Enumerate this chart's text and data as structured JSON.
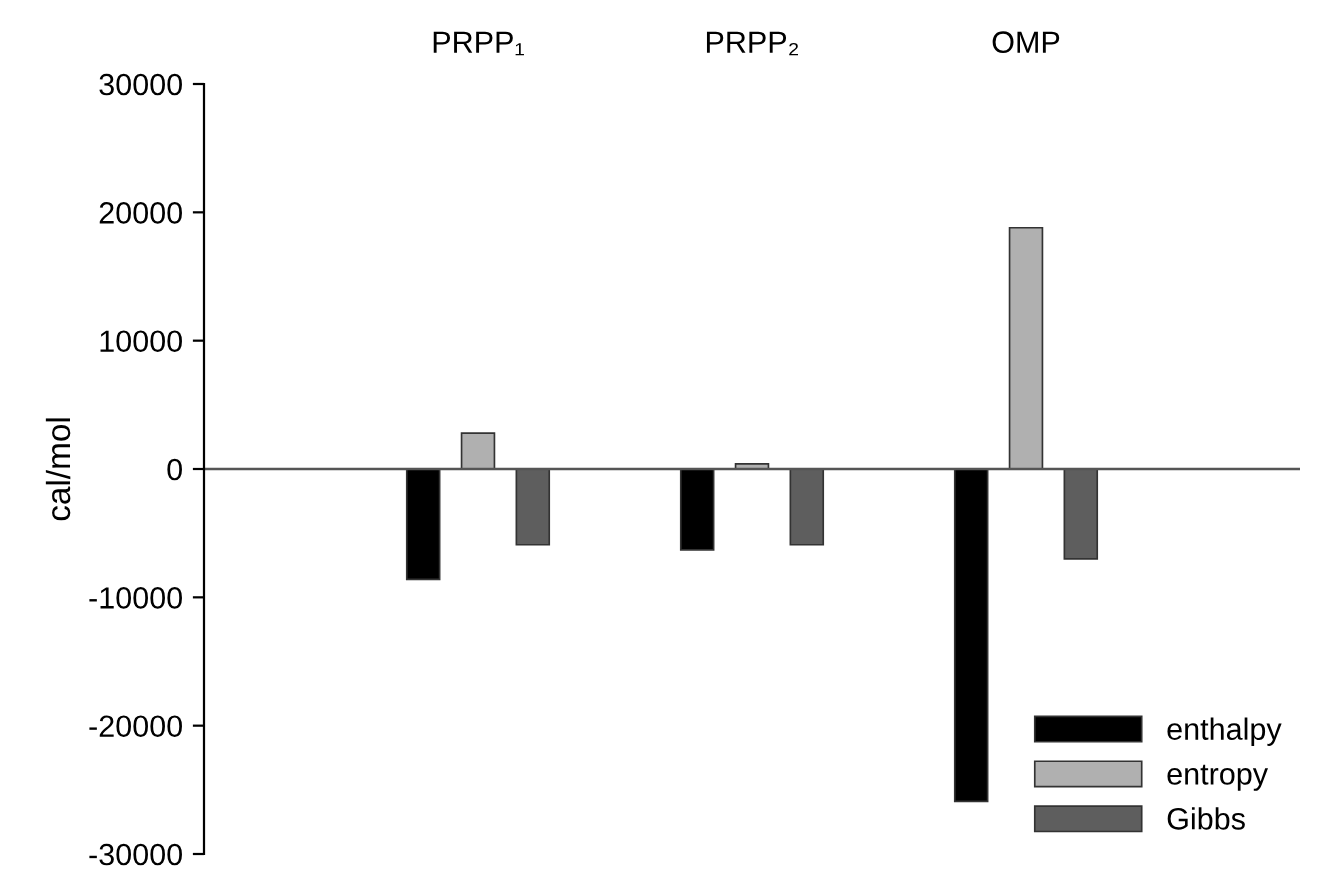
{
  "chart_data": {
    "type": "bar",
    "ylabel": "cal/mol",
    "categories": [
      "PRPP₁",
      "PRPP₂",
      "OMP"
    ],
    "series": [
      {
        "name": "enthalpy",
        "color": "#000000",
        "values": [
          -8600,
          -6300,
          -25900
        ]
      },
      {
        "name": "entropy",
        "color": "#b0b0b0",
        "values": [
          2800,
          400,
          18800
        ]
      },
      {
        "name": "Gibbs",
        "color": "#5e5e5e",
        "values": [
          -5900,
          -5900,
          -7000
        ]
      }
    ],
    "ylim": [
      -30000,
      30000
    ],
    "yticks": [
      -30000,
      -20000,
      -10000,
      0,
      10000,
      20000,
      30000
    ],
    "ref_lines": [
      {
        "axis": "y",
        "value": 0,
        "color": "#555555"
      }
    ],
    "legend": "bottom right"
  }
}
